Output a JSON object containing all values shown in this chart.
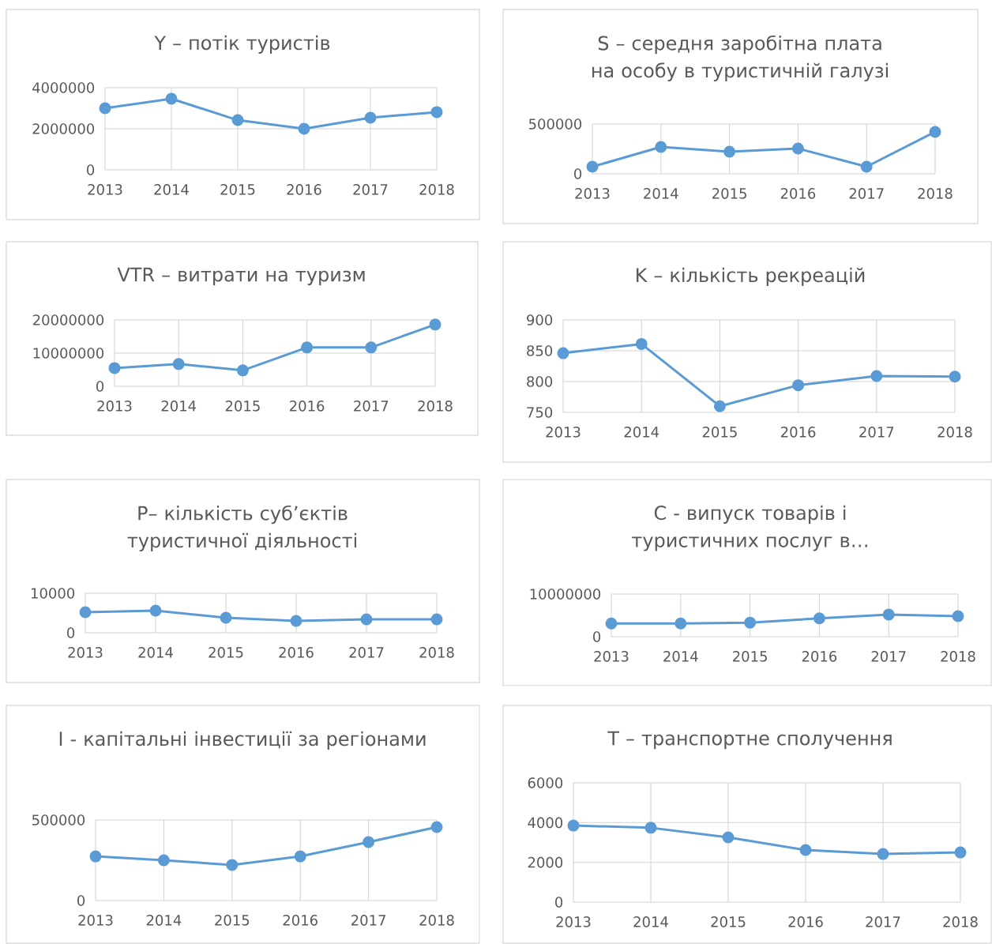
{
  "chart_data": [
    {
      "type": "line",
      "title": "Y – потік туристів",
      "categories": [
        "2013",
        "2014",
        "2015",
        "2016",
        "2017",
        "2018"
      ],
      "values": [
        3000000,
        3460000,
        2420000,
        2000000,
        2540000,
        2810000
      ],
      "color": "#5b9bd5",
      "ylim": [
        0,
        4000000
      ],
      "yticks": [
        0,
        2000000,
        4000000
      ],
      "grid": true,
      "marker": "circle"
    },
    {
      "type": "line",
      "title": "S – середня заробітна плата на особу в туристичній галузі",
      "categories": [
        "2013",
        "2014",
        "2015",
        "2016",
        "2017",
        "2018"
      ],
      "values": [
        71000,
        270000,
        222000,
        254000,
        71000,
        421000
      ],
      "color": "#5b9bd5",
      "ylim": [
        0,
        500000
      ],
      "yticks": [
        0,
        500000
      ],
      "grid": true,
      "marker": "circle"
    },
    {
      "type": "line",
      "title": "VTR  – витрати на туризм",
      "categories": [
        "2013",
        "2014",
        "2015",
        "2016",
        "2017",
        "2018"
      ],
      "values": [
        5500000,
        6700000,
        4800000,
        11700000,
        11700000,
        18600000
      ],
      "color": "#5b9bd5",
      "ylim": [
        0,
        20000000
      ],
      "yticks": [
        0,
        10000000,
        20000000
      ],
      "grid": true,
      "marker": "circle"
    },
    {
      "type": "line",
      "title": "K – кількість рекреацій",
      "categories": [
        "2013",
        "2014",
        "2015",
        "2016",
        "2017",
        "2018"
      ],
      "values": [
        846,
        861,
        760,
        794,
        809,
        808
      ],
      "color": "#5b9bd5",
      "ylim": [
        750,
        900
      ],
      "yticks": [
        750,
        800,
        850,
        900
      ],
      "grid": true,
      "marker": "circle"
    },
    {
      "type": "line",
      "title": "P– кількість суб’єктів туристичної діяльності",
      "categories": [
        "2013",
        "2014",
        "2015",
        "2016",
        "2017",
        "2018"
      ],
      "values": [
        5200,
        5600,
        3800,
        3000,
        3400,
        3400
      ],
      "color": "#5b9bd5",
      "ylim": [
        0,
        10000
      ],
      "yticks": [
        0,
        10000
      ],
      "grid": true,
      "marker": "circle"
    },
    {
      "type": "line",
      "title": "C - випуск товарів і туристичних послуг в…",
      "categories": [
        "2013",
        "2014",
        "2015",
        "2016",
        "2017",
        "2018"
      ],
      "values": [
        3100000,
        3100000,
        3300000,
        4300000,
        5200000,
        4800000
      ],
      "color": "#5b9bd5",
      "ylim": [
        0,
        10000000
      ],
      "yticks": [
        0,
        10000000
      ],
      "grid": true,
      "marker": "circle"
    },
    {
      "type": "line",
      "title": "I - капітальні інвестиції за регіонами",
      "categories": [
        "2013",
        "2014",
        "2015",
        "2016",
        "2017",
        "2018"
      ],
      "values": [
        274000,
        250000,
        221000,
        274000,
        363000,
        456000
      ],
      "color": "#5b9bd5",
      "ylim": [
        0,
        500000
      ],
      "yticks": [
        0,
        500000
      ],
      "grid": true,
      "marker": "circle"
    },
    {
      "type": "line",
      "title": "T – транспортне сполучення",
      "categories": [
        "2013",
        "2014",
        "2015",
        "2016",
        "2017",
        "2018"
      ],
      "values": [
        3850,
        3740,
        3260,
        2620,
        2420,
        2500
      ],
      "color": "#5b9bd5",
      "ylim": [
        0,
        6000
      ],
      "yticks": [
        0,
        2000,
        4000,
        6000
      ],
      "grid": true,
      "marker": "circle"
    }
  ]
}
